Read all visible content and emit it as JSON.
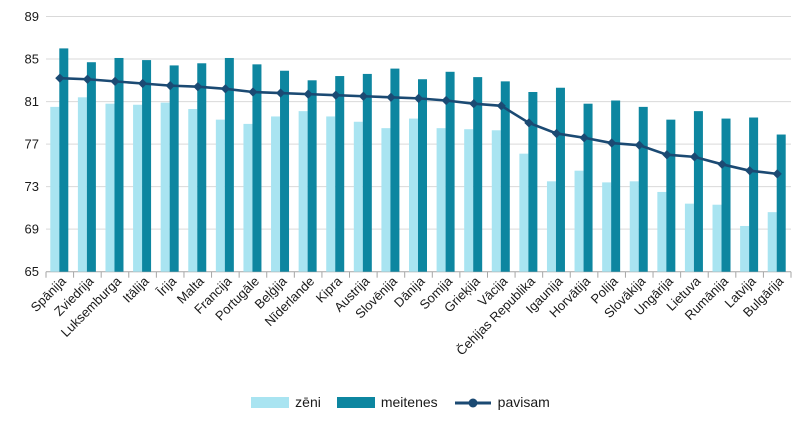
{
  "chart_data": {
    "type": "bar",
    "subtype": "grouped-bars-with-line-overlay",
    "title": "",
    "xlabel": "",
    "ylabel": "",
    "categories": [
      "Spānija",
      "Zviedrija",
      "Luksemburga",
      "Itālija",
      "Īrija",
      "Malta",
      "Francija",
      "Portugāle",
      "Beļģija",
      "Nīderlande",
      "Kipra",
      "Austrija",
      "Slovēnija",
      "Dānija",
      "Somija",
      "Grieķija",
      "Vācija",
      "Čehijas Republika",
      "Igaunija",
      "Horvātija",
      "Polija",
      "Slovākija",
      "Ungārija",
      "Lietuva",
      "Rumānija",
      "Latvija",
      "Bulgārija"
    ],
    "series": [
      {
        "name": "zēni",
        "type": "bar",
        "color": "#a9e4f1",
        "values": [
          80.5,
          81.4,
          80.8,
          80.7,
          80.9,
          80.3,
          79.3,
          78.9,
          79.6,
          80.1,
          79.6,
          79.1,
          78.5,
          79.4,
          78.5,
          78.4,
          78.3,
          76.1,
          73.5,
          74.5,
          73.4,
          73.5,
          72.5,
          71.4,
          71.3,
          69.3,
          70.6
        ]
      },
      {
        "name": "meitenes",
        "type": "bar",
        "color": "#0d86a0",
        "values": [
          86.0,
          84.7,
          85.1,
          84.9,
          84.4,
          84.6,
          85.1,
          84.5,
          83.9,
          83.0,
          83.4,
          83.6,
          84.1,
          83.1,
          83.8,
          83.3,
          82.9,
          81.9,
          82.3,
          80.8,
          81.1,
          80.5,
          79.3,
          80.1,
          79.4,
          79.5,
          77.9
        ]
      },
      {
        "name": "pavisam",
        "type": "line",
        "color": "#1b4a73",
        "marker": "diamond",
        "values": [
          83.2,
          83.1,
          82.9,
          82.7,
          82.5,
          82.4,
          82.2,
          81.9,
          81.8,
          81.7,
          81.6,
          81.5,
          81.4,
          81.3,
          81.1,
          80.8,
          80.6,
          79.0,
          78.0,
          77.6,
          77.1,
          76.9,
          76.0,
          75.8,
          75.1,
          74.5,
          74.2
        ]
      }
    ],
    "ylim": [
      65,
      89
    ],
    "yticks": [
      65,
      69,
      73,
      77,
      81,
      85,
      89
    ],
    "grid": true,
    "legend_position": "bottom",
    "colors": {
      "gridline": "#d9d9d9",
      "axis": "#a6a6a6",
      "tick_text": "#1a1a1a"
    }
  }
}
